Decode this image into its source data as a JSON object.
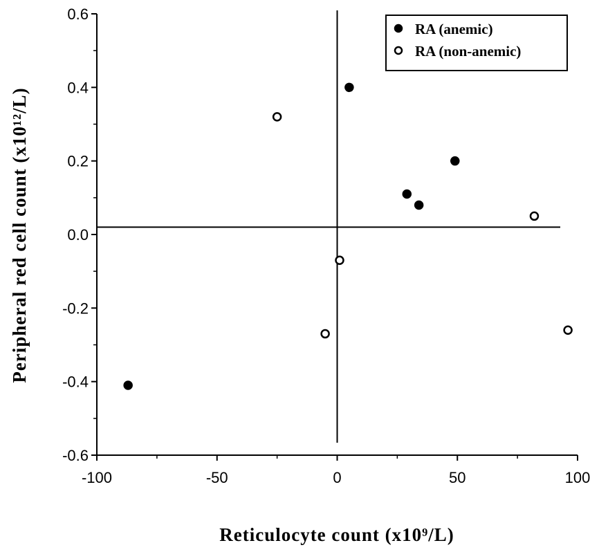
{
  "chart_data": {
    "type": "scatter",
    "title": "",
    "xlabel": "Reticulocyte count (x10⁹/L)",
    "ylabel": "Peripheral red cell count (x10¹²/L)",
    "xlim": [
      -100,
      100
    ],
    "ylim": [
      -0.6,
      0.6
    ],
    "x_ticks": [
      -100,
      -50,
      0,
      50,
      100
    ],
    "x_tick_labels": [
      "-100",
      "-50",
      "0",
      "50",
      "100"
    ],
    "y_ticks": [
      -0.6,
      -0.4,
      -0.2,
      0.0,
      0.2,
      0.4,
      0.6
    ],
    "y_tick_labels": [
      "-0.6",
      "-0.4",
      "-0.2",
      "0.0",
      "0.2",
      "0.4",
      "0.6"
    ],
    "grid": false,
    "legend_position": "top-right",
    "reference_lines": {
      "vertical_x": 0,
      "horizontal_y": 0.02
    },
    "series": [
      {
        "name": "RA (anemic)",
        "marker": "filled-circle",
        "points": [
          {
            "x": 5,
            "y": 0.4
          },
          {
            "x": 49,
            "y": 0.2
          },
          {
            "x": 29,
            "y": 0.11
          },
          {
            "x": 34,
            "y": 0.08
          },
          {
            "x": -87,
            "y": -0.41
          }
        ]
      },
      {
        "name": "RA (non-anemic)",
        "marker": "open-circle",
        "points": [
          {
            "x": -25,
            "y": 0.32
          },
          {
            "x": 82,
            "y": 0.05
          },
          {
            "x": 1,
            "y": -0.07
          },
          {
            "x": -5,
            "y": -0.27
          },
          {
            "x": 96,
            "y": -0.26
          }
        ]
      }
    ]
  }
}
